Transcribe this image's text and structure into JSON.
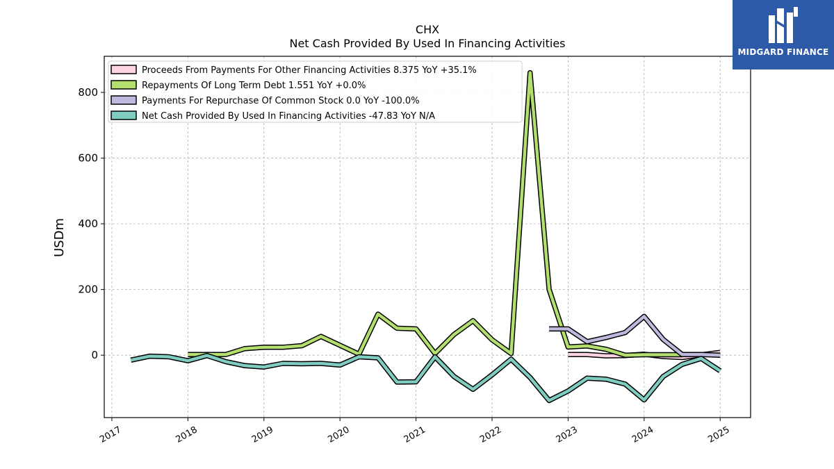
{
  "brand": {
    "name": "MIDGARD FINANCE",
    "background": "#2d5aa8"
  },
  "chart_data": {
    "type": "line",
    "title": "CHX",
    "subtitle": "Net Cash Provided By Used In Financing Activities",
    "ylabel": "USDm",
    "xlabel": "",
    "xlim": [
      2016.9,
      2025.4
    ],
    "ylim": [
      -190,
      910
    ],
    "x_ticks": [
      "2017",
      "2018",
      "2019",
      "2020",
      "2021",
      "2022",
      "2023",
      "2024",
      "2025"
    ],
    "y_ticks": [
      "0",
      "200",
      "400",
      "600",
      "800"
    ],
    "grid": true,
    "legend_position": "top-left",
    "series": [
      {
        "name": "Proceeds From Payments For Other Financing Activities  8.375 YoY +35.1%",
        "color": "#fdd2e3",
        "x": [
          2023.0,
          2023.25,
          2023.5,
          2023.75,
          2024.0,
          2024.25,
          2024.5,
          2024.75,
          2025.0
        ],
        "y": [
          2.0,
          2.0,
          -2.0,
          -1.0,
          3.0,
          -4.0,
          -7.0,
          1.0,
          8.4
        ]
      },
      {
        "name": "Repayments Of Long Term Debt  1.551 YoY +0.0%",
        "color": "#b2df6e",
        "x": [
          2018.0,
          2018.25,
          2018.5,
          2018.75,
          2019.0,
          2019.25,
          2019.5,
          2019.75,
          2020.0,
          2020.25,
          2020.5,
          2020.75,
          2021.0,
          2021.25,
          2021.5,
          2021.75,
          2022.0,
          2022.25,
          2022.5,
          2022.75,
          2023.0,
          2023.25,
          2023.5,
          2023.75,
          2024.0,
          2024.25,
          2024.5
        ],
        "y": [
          2.0,
          2.0,
          2.0,
          20.0,
          24.0,
          24.0,
          29.0,
          57.0,
          30.0,
          3.0,
          125.0,
          82.0,
          80.0,
          5.0,
          63.0,
          105.0,
          47.0,
          5.0,
          860.0,
          200.0,
          25.0,
          28.0,
          18.0,
          0.0,
          1.5,
          1.5,
          1.5
        ]
      },
      {
        "name": "Payments For Repurchase Of Common Stock  0.0 YoY -100.0%",
        "color": "#bdbade",
        "x": [
          2022.75,
          2023.0,
          2023.25,
          2023.5,
          2023.75,
          2024.0,
          2024.25,
          2024.5,
          2024.75,
          2025.0
        ],
        "y": [
          80.0,
          80.0,
          41.0,
          54.0,
          69.0,
          118.0,
          48.0,
          2.0,
          2.0,
          0.0
        ]
      },
      {
        "name": "Net Cash Provided By Used In Financing Activities  -47.83 YoY N/A",
        "color": "#80ccc0",
        "x": [
          2017.25,
          2017.5,
          2017.75,
          2018.0,
          2018.25,
          2018.5,
          2018.75,
          2019.0,
          2019.25,
          2019.5,
          2019.75,
          2020.0,
          2020.25,
          2020.5,
          2020.75,
          2021.0,
          2021.25,
          2021.5,
          2021.75,
          2022.0,
          2022.25,
          2022.5,
          2022.75,
          2023.0,
          2023.25,
          2023.5,
          2023.75,
          2024.0,
          2024.25,
          2024.5,
          2024.75,
          2025.0
        ],
        "y": [
          -15.0,
          -3.0,
          -5.0,
          -17.0,
          -1.0,
          -20.0,
          -32.0,
          -36.0,
          -25.0,
          -26.0,
          -25.0,
          -30.0,
          -5.0,
          -8.0,
          -82.0,
          -81.0,
          -5.0,
          -65.0,
          -104.0,
          -60.0,
          -12.0,
          -68.0,
          -138.0,
          -109.0,
          -70.0,
          -73.0,
          -88.0,
          -136.0,
          -65.0,
          -28.0,
          -10.0,
          -47.8
        ]
      }
    ]
  }
}
